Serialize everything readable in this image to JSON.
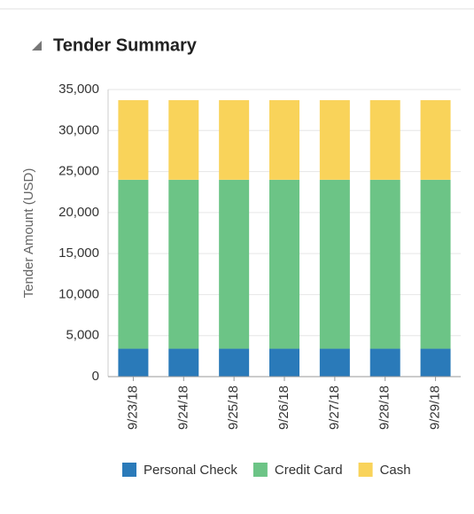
{
  "chart_data": {
    "type": "stacked_bar",
    "title": "Tender Summary",
    "y_label": "Tender Amount (USD)",
    "categories": [
      "9/23/18",
      "9/24/18",
      "9/25/18",
      "9/26/18",
      "9/27/18",
      "9/28/18",
      "9/29/18"
    ],
    "series": [
      {
        "name": "Personal Check",
        "color": "#2a7ab9",
        "values": [
          3400,
          3400,
          3400,
          3400,
          3400,
          3400,
          3400
        ]
      },
      {
        "name": "Credit Card",
        "color": "#6cc486",
        "values": [
          20600,
          20600,
          20600,
          20600,
          20600,
          20600,
          20600
        ]
      },
      {
        "name": "Cash",
        "color": "#f9d35a",
        "values": [
          9700,
          9700,
          9700,
          9700,
          9700,
          9700,
          9700
        ]
      }
    ],
    "ylim": [
      0,
      35000
    ],
    "yticks": [
      0,
      {
        "value": 5000,
        "label": "5,000"
      },
      {
        "value": 10000,
        "label": "10,000"
      },
      {
        "value": 15000,
        "label": "15,000"
      },
      {
        "value": 20000,
        "label": "20,000"
      },
      {
        "value": 25000,
        "label": "25,000"
      },
      {
        "value": 30000,
        "label": "30,000"
      },
      {
        "value": 35000,
        "label": "35,000"
      }
    ],
    "grid": true,
    "legend": "bottom"
  }
}
